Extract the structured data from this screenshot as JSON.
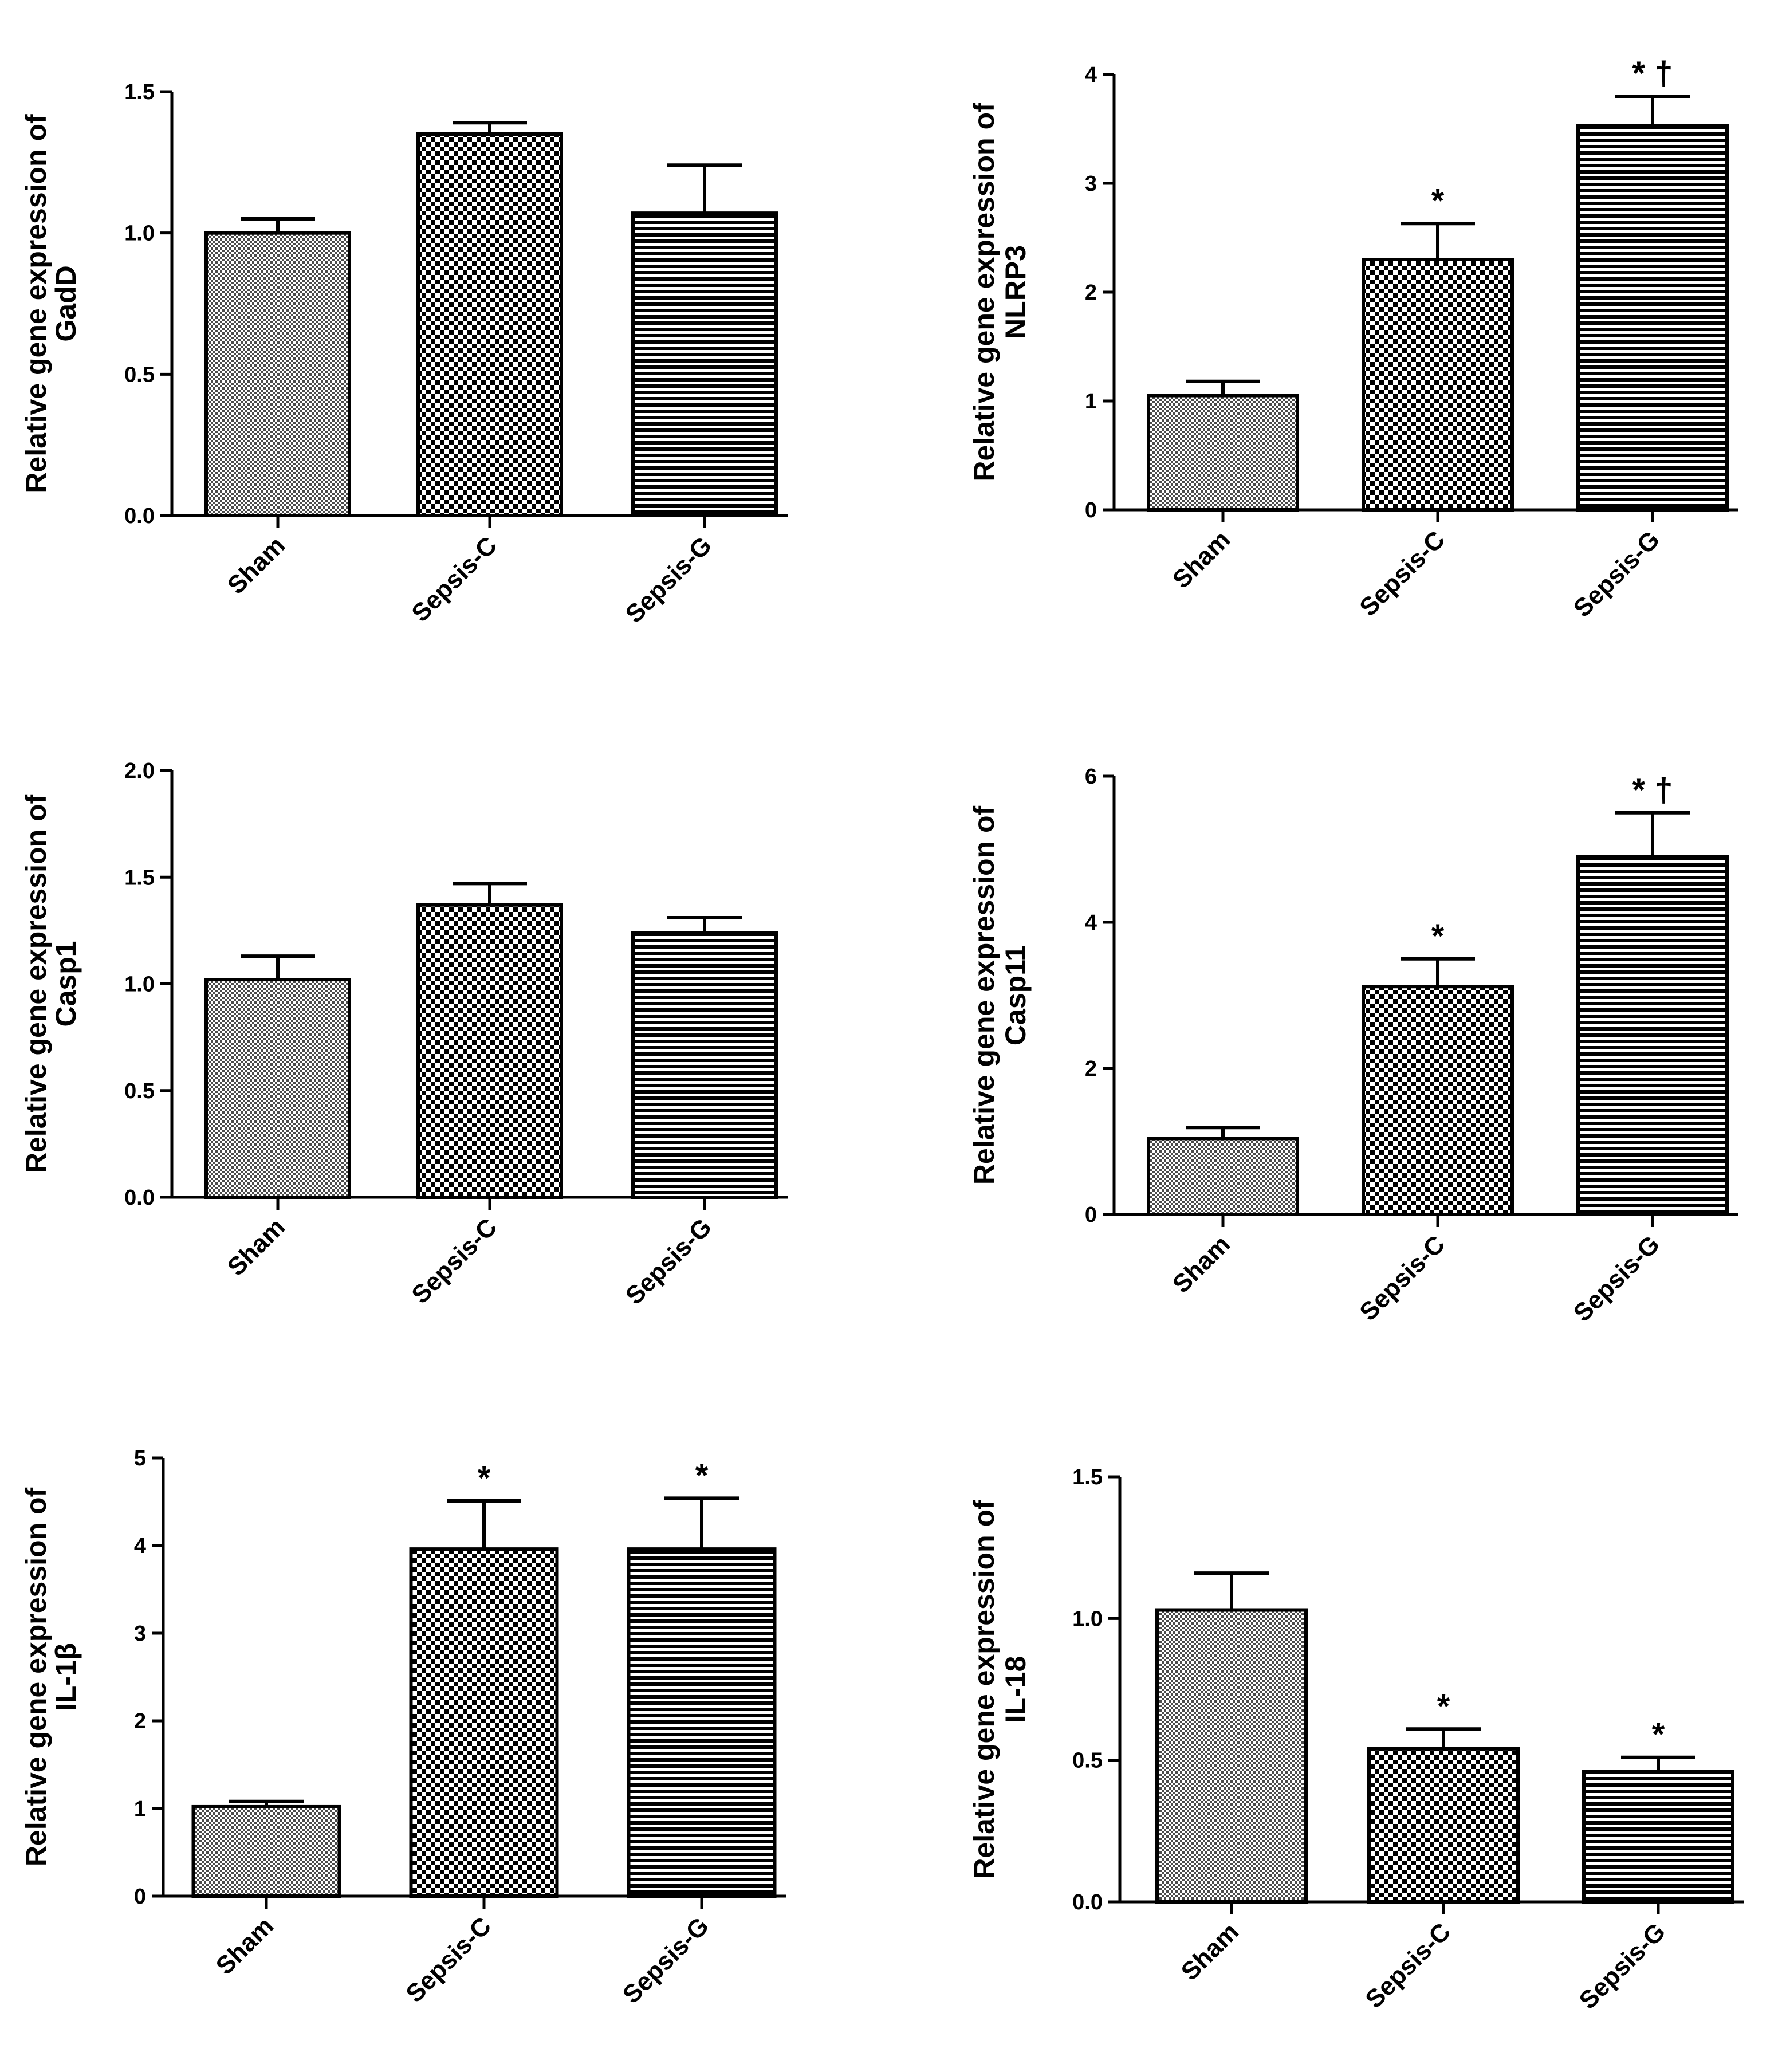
{
  "chart_data": [
    {
      "type": "bar",
      "ylabel_line1": "Relative gene expression of",
      "ylabel_line2": "GadD",
      "categories": [
        "Sham",
        "Sepsis-C",
        "Sepsis-G"
      ],
      "values": [
        1.0,
        1.35,
        1.07
      ],
      "errors": [
        0.05,
        0.04,
        0.17
      ],
      "ylim": [
        0,
        1.5
      ],
      "yticks": [
        0.0,
        0.5,
        1.0,
        1.5
      ],
      "ytick_labels": [
        "0.0",
        "0.5",
        "1.0",
        "1.5"
      ],
      "significance": [
        "",
        "",
        ""
      ]
    },
    {
      "type": "bar",
      "ylabel_line1": "Relative gene expression of",
      "ylabel_line2": "NLRP3",
      "categories": [
        "Sham",
        "Sepsis-C",
        "Sepsis-G"
      ],
      "values": [
        1.05,
        2.3,
        3.53
      ],
      "errors": [
        0.13,
        0.33,
        0.27
      ],
      "ylim": [
        0,
        4
      ],
      "yticks": [
        0,
        1,
        2,
        3,
        4
      ],
      "ytick_labels": [
        "0",
        "1",
        "2",
        "3",
        "4"
      ],
      "significance": [
        "",
        "*",
        "* †"
      ]
    },
    {
      "type": "bar",
      "ylabel_line1": "Relative gene expression of",
      "ylabel_line2": "Casp1",
      "categories": [
        "Sham",
        "Sepsis-C",
        "Sepsis-G"
      ],
      "values": [
        1.02,
        1.37,
        1.24
      ],
      "errors": [
        0.11,
        0.1,
        0.07
      ],
      "ylim": [
        0,
        2.0
      ],
      "yticks": [
        0.0,
        0.5,
        1.0,
        1.5,
        2.0
      ],
      "ytick_labels": [
        "0.0",
        "0.5",
        "1.0",
        "1.5",
        "2.0"
      ],
      "significance": [
        "",
        "",
        ""
      ]
    },
    {
      "type": "bar",
      "ylabel_line1": "Relative gene expression of",
      "ylabel_line2": "Casp11",
      "categories": [
        "Sham",
        "Sepsis-C",
        "Sepsis-G"
      ],
      "values": [
        1.04,
        3.12,
        4.9
      ],
      "errors": [
        0.15,
        0.38,
        0.6
      ],
      "ylim": [
        0,
        6
      ],
      "yticks": [
        0,
        2,
        4,
        6
      ],
      "ytick_labels": [
        "0",
        "2",
        "4",
        "6"
      ],
      "significance": [
        "",
        "*",
        "* †"
      ]
    },
    {
      "type": "bar",
      "ylabel_line1": "Relative gene expression of",
      "ylabel_line2": "IL-1β",
      "categories": [
        "Sham",
        "Sepsis-C",
        "Sepsis-G"
      ],
      "values": [
        1.02,
        3.96,
        3.96
      ],
      "errors": [
        0.06,
        0.55,
        0.58
      ],
      "ylim": [
        0,
        5
      ],
      "yticks": [
        0,
        1,
        2,
        3,
        4,
        5
      ],
      "ytick_labels": [
        "0",
        "1",
        "2",
        "3",
        "4",
        "5"
      ],
      "significance": [
        "",
        "*",
        "*"
      ]
    },
    {
      "type": "bar",
      "ylabel_line1": "Relative gene expression of",
      "ylabel_line2": "IL-18",
      "categories": [
        "Sham",
        "Sepsis-C",
        "Sepsis-G"
      ],
      "values": [
        1.03,
        0.54,
        0.46
      ],
      "errors": [
        0.13,
        0.07,
        0.05
      ],
      "ylim": [
        0,
        1.5
      ],
      "yticks": [
        0.0,
        0.5,
        1.0,
        1.5
      ],
      "ytick_labels": [
        "0.0",
        "0.5",
        "1.0",
        "1.5"
      ],
      "significance": [
        "",
        "*",
        "*"
      ]
    }
  ]
}
